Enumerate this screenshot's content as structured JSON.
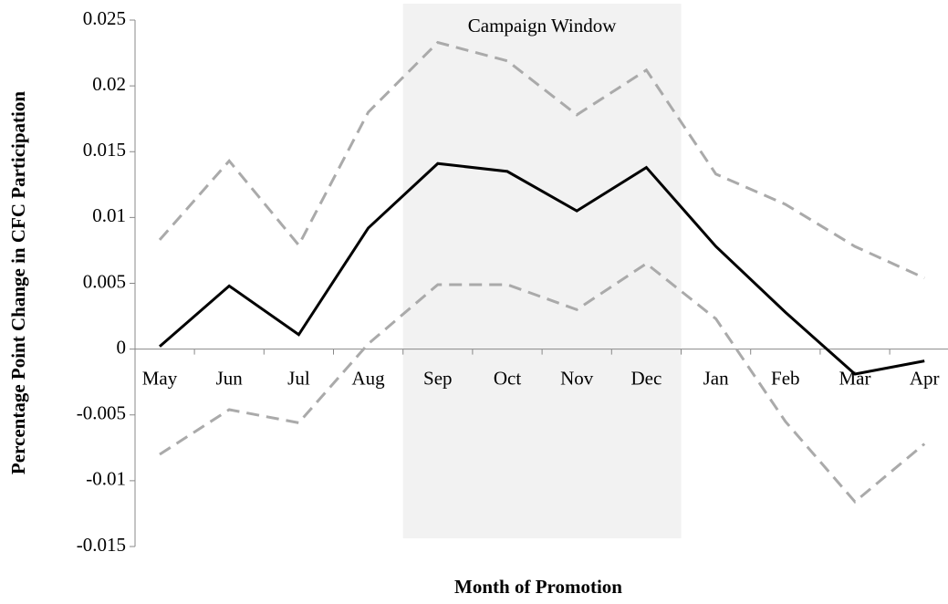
{
  "chart_data": {
    "type": "line",
    "x_label": "Month of Promotion",
    "y_label": "Percentage Point Change in CFC Participation",
    "categories": [
      "May",
      "Jun",
      "Jul",
      "Aug",
      "Sep",
      "Oct",
      "Nov",
      "Dec",
      "Jan",
      "Feb",
      "Mar",
      "Apr"
    ],
    "series": [
      {
        "color": "#aaaaaa",
        "style": "dashed",
        "values": [
          0.0083,
          0.0143,
          0.0079,
          0.018,
          0.0233,
          0.0219,
          0.0178,
          0.0212,
          0.0133,
          0.011,
          0.0078,
          0.0054
        ]
      },
      {
        "color": "#aaaaaa",
        "style": "dashed",
        "values": [
          -0.008,
          -0.0046,
          -0.0056,
          0.0004,
          0.0049,
          0.0049,
          0.003,
          0.0065,
          0.0023,
          -0.0055,
          -0.0116,
          -0.0072
        ]
      },
      {
        "color": "#000000",
        "style": "solid",
        "values": [
          0.0002,
          0.0048,
          0.0011,
          0.0092,
          0.0141,
          0.0135,
          0.0105,
          0.0138,
          0.0078,
          0.0028,
          -0.0019,
          -0.0009
        ]
      }
    ],
    "shade": {
      "label": "Campaign Window",
      "from": "Sep",
      "to": "Dec",
      "color": "#f2f2f2"
    },
    "ylim": [
      -0.015,
      0.025
    ],
    "yticks": [
      -0.015,
      -0.01,
      -0.005,
      0,
      0.005,
      0.01,
      0.015,
      0.02,
      0.025
    ]
  }
}
